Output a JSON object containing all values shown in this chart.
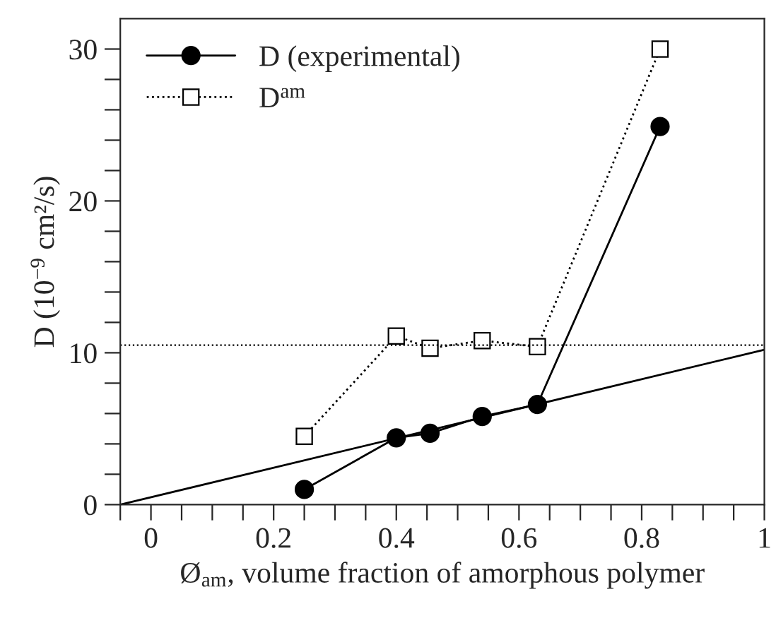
{
  "chart_data": {
    "type": "line",
    "xlabel": "Ø$_{am}$, volume fraction of amorphous polymer",
    "ylabel": "D (10$^{−9}$ cm²/s)",
    "xlim": [
      -0.05,
      1
    ],
    "ylim": [
      0,
      32
    ],
    "xticks": [
      {
        "value": -0.05,
        "label": null
      },
      0,
      {
        "value": 0.05,
        "label": null
      },
      {
        "value": 0.1,
        "label": null
      },
      {
        "value": 0.15,
        "label": null
      },
      0.2,
      {
        "value": 0.25,
        "label": null
      },
      {
        "value": 0.3,
        "label": null
      },
      {
        "value": 0.35,
        "label": null
      },
      0.4,
      {
        "value": 0.45,
        "label": null
      },
      {
        "value": 0.5,
        "label": null
      },
      {
        "value": 0.55,
        "label": null
      },
      0.6,
      {
        "value": 0.65,
        "label": null
      },
      {
        "value": 0.7,
        "label": null
      },
      {
        "value": 0.75,
        "label": null
      },
      0.8,
      {
        "value": 0.85,
        "label": null
      },
      {
        "value": 0.9,
        "label": null
      },
      {
        "value": 0.95,
        "label": null
      },
      1
    ],
    "yticks": [
      0,
      {
        "value": 2,
        "label": null
      },
      {
        "value": 4,
        "label": null
      },
      {
        "value": 6,
        "label": null
      },
      {
        "value": 8,
        "label": null
      },
      10,
      {
        "value": 12,
        "label": null
      },
      {
        "value": 14,
        "label": null
      },
      {
        "value": 16,
        "label": null
      },
      {
        "value": 18,
        "label": null
      },
      20,
      {
        "value": 22,
        "label": null
      },
      {
        "value": 24,
        "label": null
      },
      {
        "value": 26,
        "label": null
      },
      {
        "value": 28,
        "label": null
      },
      30
    ],
    "grid": false,
    "legend": "top left",
    "ref_lines": [
      {
        "axis": "y",
        "value": 10.5,
        "color": "#000000",
        "line_style": "dotted"
      }
    ],
    "series": [
      {
        "name": "D (experimental)",
        "color": "#000000",
        "marker": "circle",
        "line_style": "solid",
        "x": [
          0.25,
          0.4,
          0.455,
          0.54,
          0.63,
          0.83
        ],
        "values": [
          1.0,
          4.4,
          4.7,
          5.8,
          6.6,
          24.9
        ]
      },
      {
        "name": "D$^{am}$",
        "color": "#000000",
        "marker": "square",
        "line_style": "dotted",
        "x": [
          0.25,
          0.4,
          0.455,
          0.54,
          0.63,
          0.83
        ],
        "values": [
          4.5,
          11.1,
          10.3,
          10.8,
          10.4,
          30
        ]
      },
      {
        "color": "#000000",
        "marker": "none",
        "line_style": "solid",
        "x": [
          -0.05,
          1
        ],
        "values": [
          0,
          10.2
        ]
      }
    ]
  }
}
